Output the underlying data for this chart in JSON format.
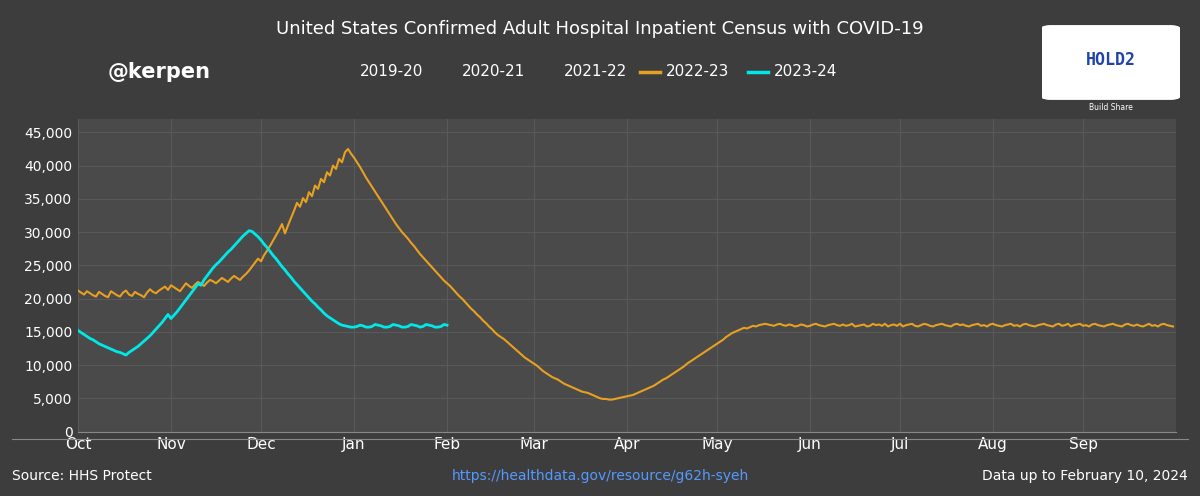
{
  "title": "United States Confirmed Adult Hospital Inpatient Census with COVID-19",
  "background_color": "#3d3d3d",
  "plot_bg_color": "#4a4a4a",
  "grid_color": "#5a5a5a",
  "text_color": "#ffffff",
  "source_text": "Source: HHS Protect",
  "url_text": "https://healthdata.gov/resource/g62h-syeh",
  "date_text": "Data up to February 10, 2024",
  "watermark": "@kerpen",
  "x_labels": [
    "Oct",
    "Nov",
    "Dec",
    "Jan",
    "Feb",
    "Mar",
    "Apr",
    "May",
    "Jun",
    "Jul",
    "Aug",
    "Sep"
  ],
  "x_tick_pos": [
    0,
    31,
    61,
    92,
    123,
    152,
    183,
    213,
    244,
    274,
    305,
    335
  ],
  "total_days": 366,
  "ylim": [
    0,
    47000
  ],
  "yticks": [
    0,
    5000,
    10000,
    15000,
    20000,
    25000,
    30000,
    35000,
    40000,
    45000
  ],
  "legend_labels": [
    "2019-20",
    "2020-21",
    "2021-22",
    "2022-23",
    "2023-24"
  ],
  "line_color_2022_23": "#e8a020",
  "line_color_2023_24": "#00e8e8",
  "series_2022_23_x": [
    0,
    1,
    2,
    3,
    4,
    5,
    6,
    7,
    8,
    9,
    10,
    11,
    12,
    13,
    14,
    15,
    16,
    17,
    18,
    19,
    20,
    21,
    22,
    23,
    24,
    25,
    26,
    27,
    28,
    29,
    30,
    31,
    32,
    33,
    34,
    35,
    36,
    37,
    38,
    39,
    40,
    41,
    42,
    43,
    44,
    45,
    46,
    47,
    48,
    49,
    50,
    51,
    52,
    53,
    54,
    55,
    56,
    57,
    58,
    59,
    60,
    61,
    62,
    63,
    64,
    65,
    66,
    67,
    68,
    69,
    70,
    71,
    72,
    73,
    74,
    75,
    76,
    77,
    78,
    79,
    80,
    81,
    82,
    83,
    84,
    85,
    86,
    87,
    88,
    89,
    90,
    91,
    92,
    93,
    94,
    95,
    96,
    97,
    98,
    99,
    100,
    101,
    102,
    103,
    104,
    105,
    106,
    107,
    108,
    109,
    110,
    111,
    112,
    113,
    114,
    115,
    116,
    117,
    118,
    119,
    120,
    121,
    122,
    123,
    124,
    125,
    126,
    127,
    128,
    129,
    130,
    131,
    132,
    133,
    134,
    135,
    136,
    137,
    138,
    139,
    140,
    141,
    142,
    143,
    144,
    145,
    146,
    147,
    148,
    149,
    150,
    151,
    152,
    153,
    154,
    155,
    156,
    157,
    158,
    159,
    160,
    161,
    162,
    163,
    164,
    165,
    166,
    167,
    168,
    169,
    170,
    171,
    172,
    173,
    174,
    175,
    176,
    177,
    178,
    179,
    180,
    181,
    182,
    183,
    184,
    185,
    186,
    187,
    188,
    189,
    190,
    191,
    192,
    193,
    194,
    195,
    196,
    197,
    198,
    199,
    200,
    201,
    202,
    203,
    204,
    205,
    206,
    207,
    208,
    209,
    210,
    211,
    212,
    213,
    214,
    215,
    216,
    217,
    218,
    219,
    220,
    221,
    222,
    223,
    224,
    225,
    226,
    227,
    228,
    229,
    230,
    231,
    232,
    233,
    234,
    235,
    236,
    237,
    238,
    239,
    240,
    241,
    242,
    243,
    244,
    245,
    246,
    247,
    248,
    249,
    250,
    251,
    252,
    253,
    254,
    255,
    256,
    257,
    258,
    259,
    260,
    261,
    262,
    263,
    264,
    265,
    266,
    267,
    268,
    269,
    270,
    271,
    272,
    273,
    274,
    275,
    276,
    277,
    278,
    279,
    280,
    281,
    282,
    283,
    284,
    285,
    286,
    287,
    288,
    289,
    290,
    291,
    292,
    293,
    294,
    295,
    296,
    297,
    298,
    299,
    300,
    301,
    302,
    303,
    304,
    305,
    306,
    307,
    308,
    309,
    310,
    311,
    312,
    313,
    314,
    315,
    316,
    317,
    318,
    319,
    320,
    321,
    322,
    323,
    324,
    325,
    326,
    327,
    328,
    329,
    330,
    331,
    332,
    333,
    334,
    335,
    336,
    337,
    338,
    339,
    340,
    341,
    342,
    343,
    344,
    345,
    346,
    347,
    348,
    349,
    350,
    351,
    352,
    353,
    354,
    355,
    356,
    357,
    358,
    359,
    360,
    361,
    362,
    363,
    364,
    365
  ],
  "series_2022_23_y": [
    21200,
    20900,
    20600,
    21100,
    20800,
    20500,
    20300,
    21000,
    20700,
    20400,
    20200,
    21100,
    20800,
    20500,
    20300,
    20900,
    21200,
    20600,
    20400,
    21000,
    20700,
    20500,
    20200,
    20900,
    21400,
    21000,
    20800,
    21200,
    21500,
    21800,
    21300,
    22000,
    21700,
    21400,
    21100,
    21700,
    22300,
    21900,
    21600,
    22100,
    22500,
    22200,
    21900,
    22400,
    22800,
    22600,
    22300,
    22700,
    23100,
    22800,
    22500,
    23000,
    23400,
    23100,
    22800,
    23300,
    23700,
    24200,
    24800,
    25400,
    26000,
    25600,
    26500,
    27200,
    27900,
    28700,
    29500,
    30300,
    31200,
    29800,
    31000,
    32100,
    33200,
    34400,
    33800,
    35100,
    34500,
    36000,
    35400,
    37000,
    36500,
    38000,
    37500,
    39000,
    38500,
    40000,
    39500,
    41000,
    40500,
    42000,
    42500,
    41800,
    41200,
    40500,
    39800,
    39000,
    38200,
    37500,
    36800,
    36100,
    35400,
    34700,
    34000,
    33300,
    32600,
    31900,
    31200,
    30600,
    30000,
    29500,
    29000,
    28400,
    27900,
    27300,
    26700,
    26200,
    25700,
    25200,
    24700,
    24200,
    23700,
    23200,
    22700,
    22300,
    21900,
    21400,
    20900,
    20400,
    20000,
    19500,
    19000,
    18500,
    18100,
    17600,
    17200,
    16700,
    16300,
    15800,
    15400,
    14900,
    14500,
    14200,
    13900,
    13500,
    13100,
    12700,
    12300,
    11900,
    11500,
    11100,
    10800,
    10500,
    10200,
    9900,
    9500,
    9100,
    8800,
    8500,
    8200,
    8000,
    7800,
    7500,
    7200,
    7000,
    6800,
    6600,
    6400,
    6200,
    6000,
    5900,
    5800,
    5600,
    5400,
    5200,
    5000,
    4900,
    4900,
    4800,
    4800,
    4900,
    5000,
    5100,
    5200,
    5300,
    5400,
    5500,
    5700,
    5900,
    6100,
    6300,
    6500,
    6700,
    6900,
    7200,
    7500,
    7800,
    8000,
    8300,
    8600,
    8900,
    9200,
    9500,
    9800,
    10200,
    10500,
    10800,
    11100,
    11400,
    11700,
    12000,
    12300,
    12600,
    12900,
    13200,
    13500,
    13800,
    14200,
    14500,
    14800,
    15000,
    15200,
    15400,
    15600,
    15500,
    15700,
    15900,
    15800,
    16000,
    16100,
    16200,
    16100,
    16000,
    15900,
    16100,
    16200,
    16000,
    15900,
    16100,
    16000,
    15800,
    15900,
    16100,
    16000,
    15800,
    15900,
    16100,
    16200,
    16000,
    15900,
    15800,
    16000,
    16100,
    16200,
    16000,
    15900,
    16100,
    15900,
    16000,
    16200,
    15800,
    15900,
    16000,
    16100,
    15800,
    15900,
    16200,
    16000,
    16100,
    15900,
    16200,
    15800,
    16000,
    16100,
    15900,
    16200,
    15800,
    16000,
    16100,
    16200,
    15900,
    15800,
    16000,
    16200,
    16100,
    15900,
    15800,
    16000,
    16100,
    16200,
    16000,
    15900,
    15800,
    16100,
    16200,
    16000,
    16100,
    15900,
    15800,
    16000,
    16100,
    16200,
    15900,
    16000,
    15800,
    16100,
    16200,
    16000,
    15900,
    15800,
    16000,
    16100,
    16200,
    15900,
    16000,
    15800,
    16100,
    16200,
    16000,
    15900,
    15800,
    16000,
    16100,
    16200,
    16000,
    15900,
    15800,
    16100,
    16200,
    15900,
    16000,
    16200,
    15800,
    16000,
    16100,
    16200,
    15900,
    16000,
    15800,
    16100,
    16200,
    16000,
    15900,
    15800,
    16000,
    16100,
    16200,
    16000,
    15900,
    15800,
    16100,
    16200,
    16000,
    15900,
    16100,
    15900,
    15800,
    16000,
    16200,
    15900,
    16000,
    15800,
    16100,
    16200,
    16000,
    15900,
    15800
  ],
  "series_2023_24_x": [
    0,
    1,
    2,
    3,
    4,
    5,
    6,
    7,
    8,
    9,
    10,
    11,
    12,
    13,
    14,
    15,
    16,
    17,
    18,
    19,
    20,
    21,
    22,
    23,
    24,
    25,
    26,
    27,
    28,
    29,
    30,
    31,
    32,
    33,
    34,
    35,
    36,
    37,
    38,
    39,
    40,
    41,
    42,
    43,
    44,
    45,
    46,
    47,
    48,
    49,
    50,
    51,
    52,
    53,
    54,
    55,
    56,
    57,
    58,
    59,
    60,
    61,
    62,
    63,
    64,
    65,
    66,
    67,
    68,
    69,
    70,
    71,
    72,
    73,
    74,
    75,
    76,
    77,
    78,
    79,
    80,
    81,
    82,
    83,
    84,
    85,
    86,
    87,
    88,
    89,
    90,
    91,
    92,
    93,
    94,
    95,
    96,
    97,
    98,
    99,
    100,
    101,
    102,
    103,
    104,
    105,
    106,
    107,
    108,
    109,
    110,
    111,
    112,
    113,
    114,
    115,
    116,
    117,
    118,
    119,
    120,
    121,
    122,
    123
  ],
  "series_2023_24_y": [
    15200,
    14900,
    14600,
    14300,
    14000,
    13800,
    13500,
    13200,
    13000,
    12800,
    12600,
    12400,
    12200,
    12000,
    11900,
    11700,
    11500,
    11900,
    12200,
    12500,
    12800,
    13200,
    13600,
    14000,
    14400,
    14900,
    15400,
    15900,
    16400,
    17000,
    17600,
    17000,
    17500,
    18000,
    18600,
    19200,
    19800,
    20400,
    21000,
    21600,
    22200,
    22000,
    22800,
    23400,
    24000,
    24600,
    25100,
    25500,
    26000,
    26500,
    27000,
    27400,
    27900,
    28400,
    28900,
    29400,
    29800,
    30200,
    30100,
    29700,
    29300,
    28800,
    28200,
    27700,
    27100,
    26500,
    26000,
    25400,
    24800,
    24300,
    23700,
    23200,
    22600,
    22100,
    21600,
    21100,
    20600,
    20100,
    19600,
    19200,
    18700,
    18300,
    17800,
    17400,
    17100,
    16800,
    16500,
    16200,
    16000,
    15900,
    15800,
    15700,
    15700,
    15800,
    16000,
    15900,
    15700,
    15700,
    15800,
    16100,
    16000,
    15900,
    15700,
    15700,
    15800,
    16100,
    16000,
    15900,
    15700,
    15700,
    15800,
    16100,
    16000,
    15900,
    15700,
    15800,
    16100,
    16000,
    15900,
    15700,
    15700,
    15800,
    16100,
    16000
  ]
}
